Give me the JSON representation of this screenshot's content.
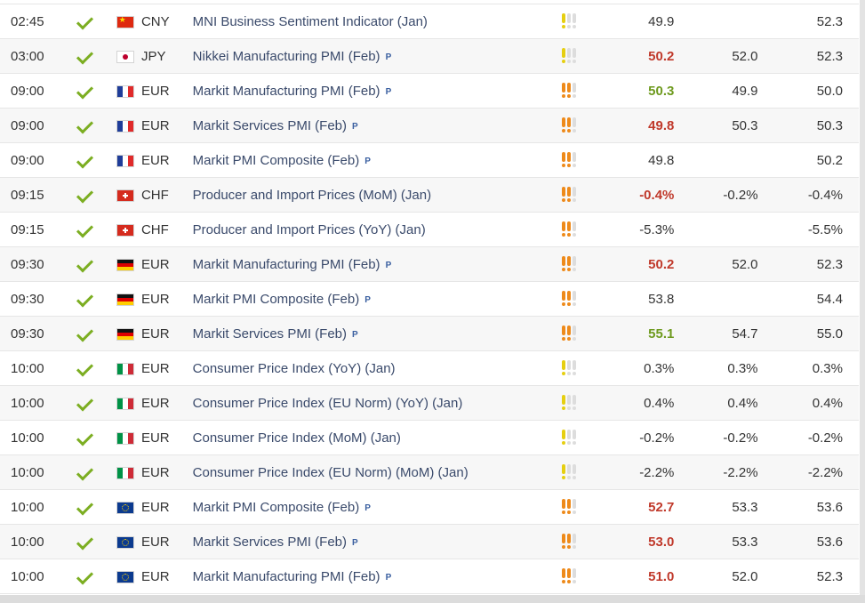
{
  "colors": {
    "check": "#7cae22",
    "worse_actual": "#c0392b",
    "better_actual": "#6e9a1e",
    "importance_low": "#e6cf10",
    "importance_medium": "#ee8a1a",
    "event_link": "#3a4a6b"
  },
  "icons": {
    "released": "check-icon",
    "preliminary": "preliminary-p-icon",
    "importance": "exclamation-icon"
  },
  "rows": [
    {
      "time": "02:45",
      "flag": "cn",
      "currency": "CNY",
      "event": "MNI Business Sentiment Indicator (Jan)",
      "prelim": false,
      "prelim_label": "",
      "importance": 1,
      "actual": "49.9",
      "actual_class": "",
      "forecast": "",
      "previous": "52.3"
    },
    {
      "time": "03:00",
      "flag": "jp",
      "currency": "JPY",
      "event": "Nikkei Manufacturing PMI (Feb)",
      "prelim": true,
      "prelim_label": "P",
      "importance": 1,
      "actual": "50.2",
      "actual_class": "neg",
      "forecast": "52.0",
      "previous": "52.3"
    },
    {
      "time": "09:00",
      "flag": "fr",
      "currency": "EUR",
      "event": "Markit Manufacturing PMI (Feb)",
      "prelim": true,
      "prelim_label": "P",
      "importance": 2,
      "actual": "50.3",
      "actual_class": "pos",
      "forecast": "49.9",
      "previous": "50.0"
    },
    {
      "time": "09:00",
      "flag": "fr",
      "currency": "EUR",
      "event": "Markit Services PMI (Feb)",
      "prelim": true,
      "prelim_label": "P",
      "importance": 2,
      "actual": "49.8",
      "actual_class": "neg",
      "forecast": "50.3",
      "previous": "50.3"
    },
    {
      "time": "09:00",
      "flag": "fr",
      "currency": "EUR",
      "event": "Markit PMI Composite (Feb)",
      "prelim": true,
      "prelim_label": "P",
      "importance": 2,
      "actual": "49.8",
      "actual_class": "",
      "forecast": "",
      "previous": "50.2"
    },
    {
      "time": "09:15",
      "flag": "ch",
      "currency": "CHF",
      "event": "Producer and Import Prices (MoM) (Jan)",
      "prelim": false,
      "prelim_label": "",
      "importance": 2,
      "actual": "-0.4%",
      "actual_class": "neg",
      "forecast": "-0.2%",
      "previous": "-0.4%"
    },
    {
      "time": "09:15",
      "flag": "ch",
      "currency": "CHF",
      "event": "Producer and Import Prices (YoY) (Jan)",
      "prelim": false,
      "prelim_label": "",
      "importance": 2,
      "actual": "-5.3%",
      "actual_class": "",
      "forecast": "",
      "previous": "-5.5%"
    },
    {
      "time": "09:30",
      "flag": "de",
      "currency": "EUR",
      "event": "Markit Manufacturing PMI (Feb)",
      "prelim": true,
      "prelim_label": "P",
      "importance": 2,
      "actual": "50.2",
      "actual_class": "neg",
      "forecast": "52.0",
      "previous": "52.3"
    },
    {
      "time": "09:30",
      "flag": "de",
      "currency": "EUR",
      "event": "Markit PMI Composite (Feb)",
      "prelim": true,
      "prelim_label": "P",
      "importance": 2,
      "actual": "53.8",
      "actual_class": "",
      "forecast": "",
      "previous": "54.4"
    },
    {
      "time": "09:30",
      "flag": "de",
      "currency": "EUR",
      "event": "Markit Services PMI (Feb)",
      "prelim": true,
      "prelim_label": "P",
      "importance": 2,
      "actual": "55.1",
      "actual_class": "pos",
      "forecast": "54.7",
      "previous": "55.0"
    },
    {
      "time": "10:00",
      "flag": "it",
      "currency": "EUR",
      "event": "Consumer Price Index (YoY) (Jan)",
      "prelim": false,
      "prelim_label": "",
      "importance": 1,
      "actual": "0.3%",
      "actual_class": "",
      "forecast": "0.3%",
      "previous": "0.3%"
    },
    {
      "time": "10:00",
      "flag": "it",
      "currency": "EUR",
      "event": "Consumer Price Index (EU Norm) (YoY) (Jan)",
      "prelim": false,
      "prelim_label": "",
      "importance": 1,
      "actual": "0.4%",
      "actual_class": "",
      "forecast": "0.4%",
      "previous": "0.4%"
    },
    {
      "time": "10:00",
      "flag": "it",
      "currency": "EUR",
      "event": "Consumer Price Index (MoM) (Jan)",
      "prelim": false,
      "prelim_label": "",
      "importance": 1,
      "actual": "-0.2%",
      "actual_class": "",
      "forecast": "-0.2%",
      "previous": "-0.2%"
    },
    {
      "time": "10:00",
      "flag": "it",
      "currency": "EUR",
      "event": "Consumer Price Index (EU Norm) (MoM) (Jan)",
      "prelim": false,
      "prelim_label": "",
      "importance": 1,
      "actual": "-2.2%",
      "actual_class": "",
      "forecast": "-2.2%",
      "previous": "-2.2%"
    },
    {
      "time": "10:00",
      "flag": "eu",
      "currency": "EUR",
      "event": "Markit PMI Composite (Feb)",
      "prelim": true,
      "prelim_label": "P",
      "importance": 2,
      "actual": "52.7",
      "actual_class": "neg",
      "forecast": "53.3",
      "previous": "53.6"
    },
    {
      "time": "10:00",
      "flag": "eu",
      "currency": "EUR",
      "event": "Markit Services PMI (Feb)",
      "prelim": true,
      "prelim_label": "P",
      "importance": 2,
      "actual": "53.0",
      "actual_class": "neg",
      "forecast": "53.3",
      "previous": "53.6"
    },
    {
      "time": "10:00",
      "flag": "eu",
      "currency": "EUR",
      "event": "Markit Manufacturing PMI (Feb)",
      "prelim": true,
      "prelim_label": "P",
      "importance": 2,
      "actual": "51.0",
      "actual_class": "neg",
      "forecast": "52.0",
      "previous": "52.3"
    }
  ]
}
